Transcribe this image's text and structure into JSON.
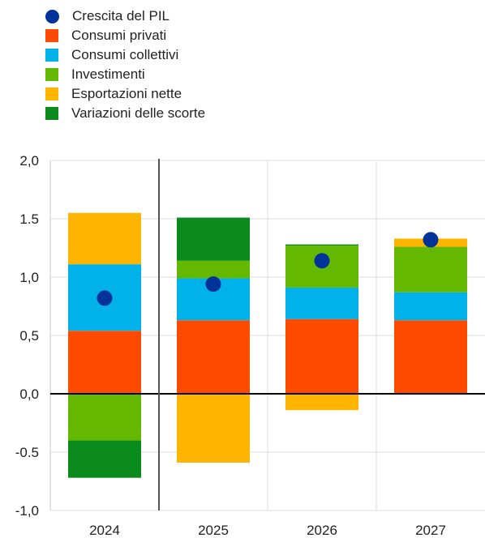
{
  "chart_data": {
    "type": "bar",
    "stacked": true,
    "categories": [
      "2024",
      "2025",
      "2026",
      "2027"
    ],
    "ylim": [
      -1.0,
      2.0
    ],
    "yticks": [
      "2,0",
      "1.5",
      "1,0",
      "0,5",
      "0,0",
      "-0.5",
      "-1,0"
    ],
    "grid": true,
    "legend_position": "top-left",
    "series": [
      {
        "name": "Consumi privati",
        "color": "#ff4b00",
        "values": [
          0.54,
          0.63,
          0.64,
          0.63
        ]
      },
      {
        "name": "Consumi collettivi",
        "color": "#00b1ea",
        "values": [
          0.57,
          0.36,
          0.27,
          0.24
        ]
      },
      {
        "name": "Investimenti",
        "color": "#65b800",
        "values": [
          -0.4,
          0.15,
          0.36,
          0.39
        ]
      },
      {
        "name": "Esportazioni nette",
        "color": "#ffb400",
        "values": [
          0.44,
          -0.59,
          -0.14,
          0.07
        ]
      },
      {
        "name": "Variazioni delle scorte",
        "color": "#0b8a1e",
        "values": [
          -0.32,
          0.37,
          0.01,
          0.0
        ]
      }
    ],
    "points": {
      "name": "Crescita del PIL",
      "color": "#003299",
      "values": [
        0.82,
        0.94,
        1.14,
        1.32
      ]
    }
  }
}
